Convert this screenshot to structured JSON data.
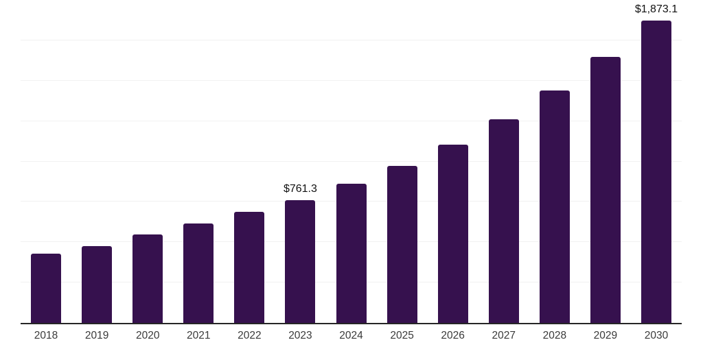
{
  "chart_data": {
    "type": "bar",
    "title": "",
    "xlabel": "",
    "ylabel": "",
    "categories": [
      "2018",
      "2019",
      "2020",
      "2021",
      "2022",
      "2023",
      "2024",
      "2025",
      "2026",
      "2027",
      "2028",
      "2029",
      "2030"
    ],
    "values": [
      430,
      474,
      547,
      614,
      689,
      761.3,
      862,
      971,
      1103,
      1262,
      1441,
      1646,
      1873.1
    ],
    "data_labels": [
      null,
      null,
      null,
      null,
      null,
      "$761.3",
      null,
      null,
      null,
      null,
      null,
      null,
      "$1,873.1"
    ],
    "ylim": [
      0,
      2000
    ],
    "grid_step": 250,
    "grid": "horizontal",
    "y_axis_ticks_shown": false,
    "legend": "none"
  },
  "style": {
    "bar_color": "#36114e",
    "gridline_color": "#f1f1f1",
    "axis_line_color": "#262626",
    "x_label_color": "#3a3a3a",
    "data_label_color": "#111111",
    "background_color": "#ffffff"
  }
}
